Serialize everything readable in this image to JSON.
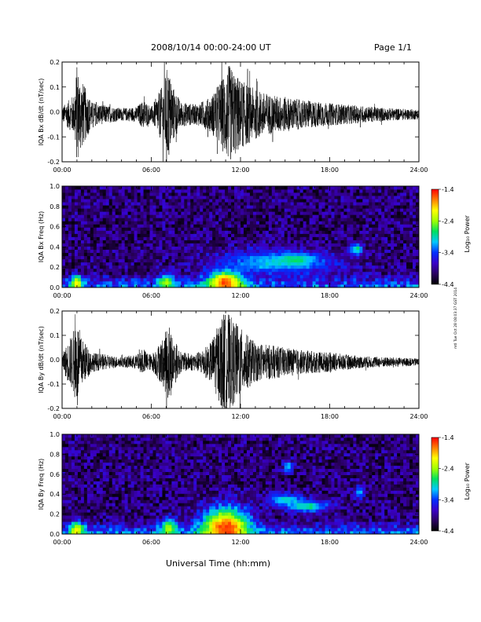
{
  "header": {
    "date_range": "2008/10/14  00:00-24:00 UT",
    "page": "Page 1/1"
  },
  "xaxis_label": "Universal Time (hh:mm)",
  "side_label": "mtl Tue Oct 28 08:03:37 GST 2014",
  "colors": {
    "trace": "#000000",
    "colorbar_stops": [
      "#000000",
      "#2a0060",
      "#3a00c8",
      "#0030ff",
      "#00c8ff",
      "#00e060",
      "#a0ff00",
      "#ffff00",
      "#ff8000",
      "#ff0000"
    ]
  },
  "chart_data": [
    {
      "type": "line",
      "name": "bx-dbdt",
      "ylabel": "IQA Bx dB/dt (nT/sec)",
      "ylim": [
        -0.2,
        0.2
      ],
      "yticks": [
        "-0.2",
        "-0.1",
        "0.0",
        "0.1",
        "0.2"
      ],
      "ytick_values": [
        -0.2,
        -0.1,
        0.0,
        0.1,
        0.2
      ],
      "xlim": [
        0,
        24
      ],
      "xticks": [
        "00:00",
        "06:00",
        "12:00",
        "18:00",
        "24:00"
      ],
      "xtick_values": [
        0,
        6,
        12,
        18,
        24
      ],
      "envelope": [
        {
          "t": 0.0,
          "amp": 0.03
        },
        {
          "t": 0.8,
          "amp": 0.08
        },
        {
          "t": 1.0,
          "amp": 0.2
        },
        {
          "t": 1.3,
          "amp": 0.14
        },
        {
          "t": 2.0,
          "amp": 0.05
        },
        {
          "t": 3.0,
          "amp": 0.035
        },
        {
          "t": 4.0,
          "amp": 0.025
        },
        {
          "t": 5.0,
          "amp": 0.03
        },
        {
          "t": 5.5,
          "amp": 0.06
        },
        {
          "t": 6.0,
          "amp": 0.03
        },
        {
          "t": 6.8,
          "amp": 0.12
        },
        {
          "t": 7.1,
          "amp": 0.2
        },
        {
          "t": 7.4,
          "amp": 0.12
        },
        {
          "t": 8.0,
          "amp": 0.05
        },
        {
          "t": 9.0,
          "amp": 0.04
        },
        {
          "t": 10.0,
          "amp": 0.07
        },
        {
          "t": 10.8,
          "amp": 0.15
        },
        {
          "t": 11.2,
          "amp": 0.2
        },
        {
          "t": 12.0,
          "amp": 0.14
        },
        {
          "t": 13.0,
          "amp": 0.1
        },
        {
          "t": 14.0,
          "amp": 0.08
        },
        {
          "t": 16.0,
          "amp": 0.06
        },
        {
          "t": 18.0,
          "amp": 0.045
        },
        {
          "t": 20.0,
          "amp": 0.035
        },
        {
          "t": 22.0,
          "amp": 0.025
        },
        {
          "t": 24.0,
          "amp": 0.02
        }
      ]
    },
    {
      "type": "heatmap",
      "name": "bx-spectrogram",
      "ylabel": "IQA Bx Freq (Hz)",
      "ylim": [
        0.0,
        1.0
      ],
      "yticks": [
        "0.0",
        "0.2",
        "0.4",
        "0.6",
        "0.8",
        "1.0"
      ],
      "ytick_values": [
        0.0,
        0.2,
        0.4,
        0.6,
        0.8,
        1.0
      ],
      "xlim": [
        0,
        24
      ],
      "xticks": [
        "00:00",
        "06:00",
        "12:00",
        "18:00",
        "24:00"
      ],
      "xtick_values": [
        0,
        6,
        12,
        18,
        24
      ],
      "colorbar": {
        "label": "Log₁₀ Power",
        "range": [
          -4.4,
          -1.4
        ],
        "ticks": [
          "-1.4",
          "-2.4",
          "-3.4",
          "-4.4"
        ],
        "tick_values": [
          -1.4,
          -2.4,
          -3.4,
          -4.4
        ]
      },
      "features": [
        {
          "t": 11.0,
          "f": 0.05,
          "level": -1.6,
          "width_h": 1.2,
          "height_hz": 0.12
        },
        {
          "t": 14.5,
          "f": 0.25,
          "level": -3.0,
          "width_h": 4.0,
          "height_hz": 0.12
        },
        {
          "t": 15.8,
          "f": 0.28,
          "level": -2.8,
          "width_h": 1.0,
          "height_hz": 0.05
        },
        {
          "t": 19.8,
          "f": 0.38,
          "level": -2.8,
          "width_h": 0.4,
          "height_hz": 0.06
        },
        {
          "t": 1.0,
          "f": 0.04,
          "level": -2.0,
          "width_h": 0.4,
          "height_hz": 0.08
        },
        {
          "t": 7.0,
          "f": 0.05,
          "level": -2.4,
          "width_h": 0.6,
          "height_hz": 0.08
        }
      ]
    },
    {
      "type": "line",
      "name": "by-dbdt",
      "ylabel": "IQA By dB/dt (nT/sec)",
      "ylim": [
        -0.2,
        0.2
      ],
      "yticks": [
        "-0.2",
        "-0.1",
        "0.0",
        "0.1",
        "0.2"
      ],
      "ytick_values": [
        -0.2,
        -0.1,
        0.0,
        0.1,
        0.2
      ],
      "xlim": [
        0,
        24
      ],
      "xticks": [
        "00:00",
        "06:00",
        "12:00",
        "18:00",
        "24:00"
      ],
      "xtick_values": [
        0,
        6,
        12,
        18,
        24
      ],
      "envelope": [
        {
          "t": 0.0,
          "amp": 0.03
        },
        {
          "t": 0.7,
          "amp": 0.12
        },
        {
          "t": 1.0,
          "amp": 0.18
        },
        {
          "t": 1.3,
          "amp": 0.1
        },
        {
          "t": 2.0,
          "amp": 0.04
        },
        {
          "t": 3.0,
          "amp": 0.03
        },
        {
          "t": 4.0,
          "amp": 0.02
        },
        {
          "t": 5.0,
          "amp": 0.03
        },
        {
          "t": 5.5,
          "amp": 0.05
        },
        {
          "t": 6.0,
          "amp": 0.03
        },
        {
          "t": 6.8,
          "amp": 0.1
        },
        {
          "t": 7.2,
          "amp": 0.17
        },
        {
          "t": 7.5,
          "amp": 0.1
        },
        {
          "t": 8.0,
          "amp": 0.04
        },
        {
          "t": 9.0,
          "amp": 0.035
        },
        {
          "t": 10.0,
          "amp": 0.08
        },
        {
          "t": 10.8,
          "amp": 0.2
        },
        {
          "t": 11.2,
          "amp": 0.2
        },
        {
          "t": 12.0,
          "amp": 0.14
        },
        {
          "t": 13.0,
          "amp": 0.08
        },
        {
          "t": 14.0,
          "amp": 0.07
        },
        {
          "t": 16.0,
          "amp": 0.05
        },
        {
          "t": 18.0,
          "amp": 0.04
        },
        {
          "t": 20.0,
          "amp": 0.025
        },
        {
          "t": 22.0,
          "amp": 0.02
        },
        {
          "t": 24.0,
          "amp": 0.015
        }
      ]
    },
    {
      "type": "heatmap",
      "name": "by-spectrogram",
      "ylabel": "IQA By Freq (Hz)",
      "ylim": [
        0.0,
        1.0
      ],
      "yticks": [
        "0.0",
        "0.2",
        "0.4",
        "0.6",
        "0.8",
        "1.0"
      ],
      "ytick_values": [
        0.0,
        0.2,
        0.4,
        0.6,
        0.8,
        1.0
      ],
      "xlim": [
        0,
        24
      ],
      "xticks": [
        "00:00",
        "06:00",
        "12:00",
        "18:00",
        "24:00"
      ],
      "xtick_values": [
        0,
        6,
        12,
        18,
        24
      ],
      "colorbar": {
        "label": "Log₁₀ Power",
        "range": [
          -4.4,
          -1.4
        ],
        "ticks": [
          "-1.4",
          "-2.4",
          "-3.4",
          "-4.4"
        ],
        "tick_values": [
          -1.4,
          -2.4,
          -3.4,
          -4.4
        ]
      },
      "features": [
        {
          "t": 11.0,
          "f": 0.06,
          "level": -1.5,
          "width_h": 1.6,
          "height_hz": 0.2
        },
        {
          "t": 15.0,
          "f": 0.35,
          "level": -3.0,
          "width_h": 1.2,
          "height_hz": 0.06
        },
        {
          "t": 16.5,
          "f": 0.28,
          "level": -2.8,
          "width_h": 1.5,
          "height_hz": 0.06
        },
        {
          "t": 15.2,
          "f": 0.68,
          "level": -3.0,
          "width_h": 0.3,
          "height_hz": 0.06
        },
        {
          "t": 20.0,
          "f": 0.42,
          "level": -3.0,
          "width_h": 0.3,
          "height_hz": 0.06
        },
        {
          "t": 1.0,
          "f": 0.04,
          "level": -2.0,
          "width_h": 0.5,
          "height_hz": 0.08
        },
        {
          "t": 7.2,
          "f": 0.06,
          "level": -2.4,
          "width_h": 0.6,
          "height_hz": 0.1
        }
      ]
    }
  ]
}
